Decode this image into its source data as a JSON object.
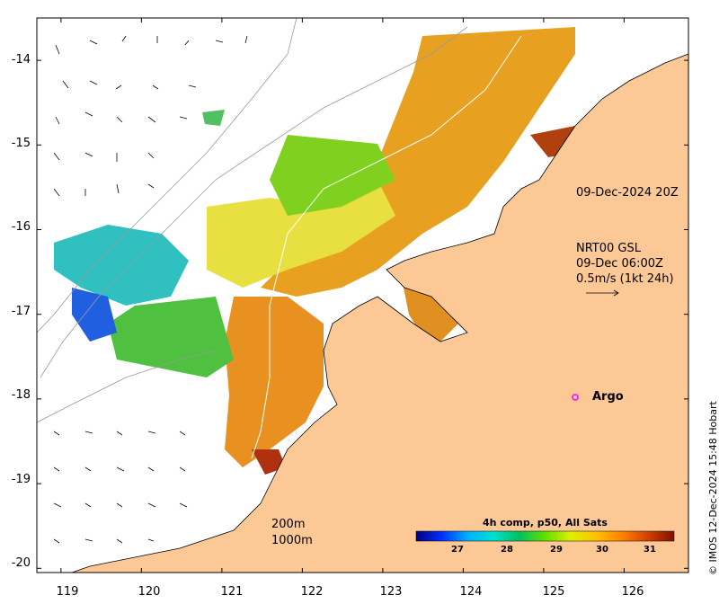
{
  "map": {
    "x_axis": {
      "ticks": [
        "119",
        "120",
        "121",
        "122",
        "123",
        "124",
        "125",
        "126"
      ],
      "values": [
        119,
        120,
        121,
        122,
        123,
        124,
        125,
        126
      ],
      "range": [
        118.7,
        126.8
      ]
    },
    "y_axis": {
      "ticks": [
        "-14",
        "-15",
        "-16",
        "-17",
        "-18",
        "-19",
        "-20"
      ],
      "values": [
        -14,
        -15,
        -16,
        -17,
        -18,
        -19,
        -20
      ],
      "range": [
        -20.05,
        -13.5
      ]
    },
    "colors": {
      "land": "#fcc896",
      "background": "#ffffff",
      "contour": "#9a9a9a",
      "track": "#ffffff"
    }
  },
  "annotations": {
    "timestamp": "09-Dec-2024 20Z",
    "current_source": "NRT00 GSL",
    "current_time": "09-Dec 06:00Z",
    "current_scale": "0.5m/s (1kt 24h)",
    "argo_label": "Argo",
    "argo_color": "#ff00ff",
    "depth_200": "200m",
    "depth_1000": "1000m"
  },
  "colorbar": {
    "title": "4h comp, p50, All Sats",
    "ticks": [
      "27",
      "28",
      "29",
      "30",
      "31"
    ],
    "tick_values": [
      27,
      28,
      29,
      30,
      31
    ],
    "range": [
      26.3,
      31.5
    ],
    "gradient": [
      "#000080",
      "#0030ff",
      "#00b0ff",
      "#00e0d0",
      "#00c060",
      "#60e000",
      "#e0f000",
      "#ffc000",
      "#ff8000",
      "#d04000",
      "#801000"
    ]
  },
  "credit": "© IMOS 12-Dec-2024 15:48 Hobart"
}
